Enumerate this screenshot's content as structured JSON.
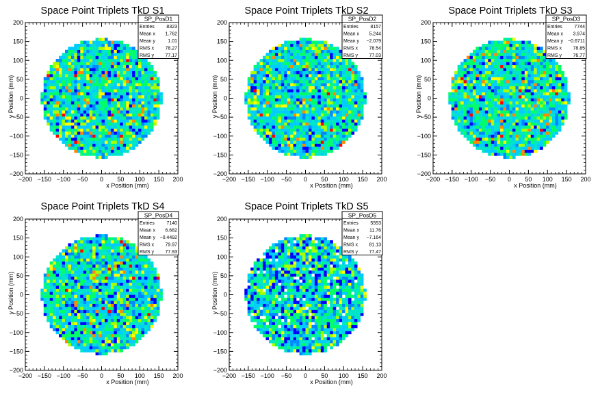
{
  "chart_data": [
    {
      "type": "heatmap",
      "title": "Space Point Triplets TkD S1",
      "xlabel": "x Position (mm)",
      "ylabel": "y Position (mm)",
      "xlim": [
        -200,
        200
      ],
      "ylim": [
        -200,
        200
      ],
      "xticks": [
        "−200",
        "−150",
        "−100",
        "−50",
        "0",
        "50",
        "100",
        "150",
        "200"
      ],
      "yticks": [
        "−200",
        "−150",
        "−100",
        "−50",
        "0",
        "50",
        "100",
        "150",
        "200"
      ],
      "radius": 160,
      "bin_size": 8,
      "stats": {
        "name": "SP_PosD1",
        "rows": [
          {
            "label": "Entries",
            "value": "8323"
          },
          {
            "label": "Mean x",
            "value": "1.762"
          },
          {
            "label": "Mean y",
            "value": "1.01"
          },
          {
            "label": "RMS x",
            "value": "78.27"
          },
          {
            "label": "RMS y",
            "value": "77.17"
          }
        ]
      }
    },
    {
      "type": "heatmap",
      "title": "Space Point Triplets TkD S2",
      "xlabel": "x Position (mm)",
      "ylabel": "y Position (mm)",
      "xlim": [
        -200,
        200
      ],
      "ylim": [
        -200,
        200
      ],
      "xticks": [
        "−200",
        "−150",
        "−100",
        "−50",
        "0",
        "50",
        "100",
        "150",
        "200"
      ],
      "yticks": [
        "−200",
        "−150",
        "−100",
        "−50",
        "0",
        "50",
        "100",
        "150",
        "200"
      ],
      "radius": 160,
      "bin_size": 8,
      "stats": {
        "name": "SP_PosD2",
        "rows": [
          {
            "label": "Entries",
            "value": "8157"
          },
          {
            "label": "Mean x",
            "value": "5.244"
          },
          {
            "label": "Mean y",
            "value": "−2.079"
          },
          {
            "label": "RMS x",
            "value": "78.54"
          },
          {
            "label": "RMS y",
            "value": "77.03"
          }
        ]
      }
    },
    {
      "type": "heatmap",
      "title": "Space Point Triplets TkD S3",
      "xlabel": "x Position (mm)",
      "ylabel": "y Position (mm)",
      "xlim": [
        -200,
        200
      ],
      "ylim": [
        -200,
        200
      ],
      "xticks": [
        "−200",
        "−150",
        "−100",
        "−50",
        "0",
        "50",
        "100",
        "150",
        "200"
      ],
      "yticks": [
        "−200",
        "−150",
        "−100",
        "−50",
        "0",
        "50",
        "100",
        "150",
        "200"
      ],
      "radius": 160,
      "bin_size": 8,
      "stats": {
        "name": "SP_PosD3",
        "rows": [
          {
            "label": "Entries",
            "value": "7744"
          },
          {
            "label": "Mean x",
            "value": "3.974"
          },
          {
            "label": "Mean y",
            "value": "−0.6711"
          },
          {
            "label": "RMS x",
            "value": "78.85"
          },
          {
            "label": "RMS y",
            "value": "76.77"
          }
        ]
      }
    },
    {
      "type": "heatmap",
      "title": "Space Point Triplets TkD S4",
      "xlabel": "x Position (mm)",
      "ylabel": "y Position (mm)",
      "xlim": [
        -200,
        200
      ],
      "ylim": [
        -200,
        200
      ],
      "xticks": [
        "−200",
        "−150",
        "−100",
        "−50",
        "0",
        "50",
        "100",
        "150",
        "200"
      ],
      "yticks": [
        "−200",
        "−150",
        "−100",
        "−50",
        "0",
        "50",
        "100",
        "150",
        "200"
      ],
      "radius": 160,
      "bin_size": 8,
      "stats": {
        "name": "SP_PosD4",
        "rows": [
          {
            "label": "Entries",
            "value": "7140"
          },
          {
            "label": "Mean x",
            "value": "6.682"
          },
          {
            "label": "Mean y",
            "value": "−0.4492"
          },
          {
            "label": "RMS x",
            "value": "79.97"
          },
          {
            "label": "RMS y",
            "value": "77.93"
          }
        ]
      }
    },
    {
      "type": "heatmap",
      "title": "Space Point Triplets TkD S5",
      "xlabel": "x Position (mm)",
      "ylabel": "y Position (mm)",
      "xlim": [
        -200,
        200
      ],
      "ylim": [
        -200,
        200
      ],
      "xticks": [
        "−200",
        "−150",
        "−100",
        "−50",
        "0",
        "50",
        "100",
        "150",
        "200"
      ],
      "yticks": [
        "−200",
        "−150",
        "−100",
        "−50",
        "0",
        "50",
        "100",
        "150",
        "200"
      ],
      "radius": 160,
      "bin_size": 8,
      "stats": {
        "name": "SP_PosD5",
        "rows": [
          {
            "label": "Entries",
            "value": "5553"
          },
          {
            "label": "Mean x",
            "value": "11.76"
          },
          {
            "label": "Mean y",
            "value": "−7.164"
          },
          {
            "label": "RMS x",
            "value": "81.13"
          },
          {
            "label": "RMS y",
            "value": "77.47"
          }
        ]
      }
    }
  ],
  "palette": [
    "#0000ff",
    "#0088ff",
    "#00ccff",
    "#00e5c8",
    "#00ff66",
    "#aaff00",
    "#ffff00",
    "#ff8800",
    "#ff0000"
  ]
}
